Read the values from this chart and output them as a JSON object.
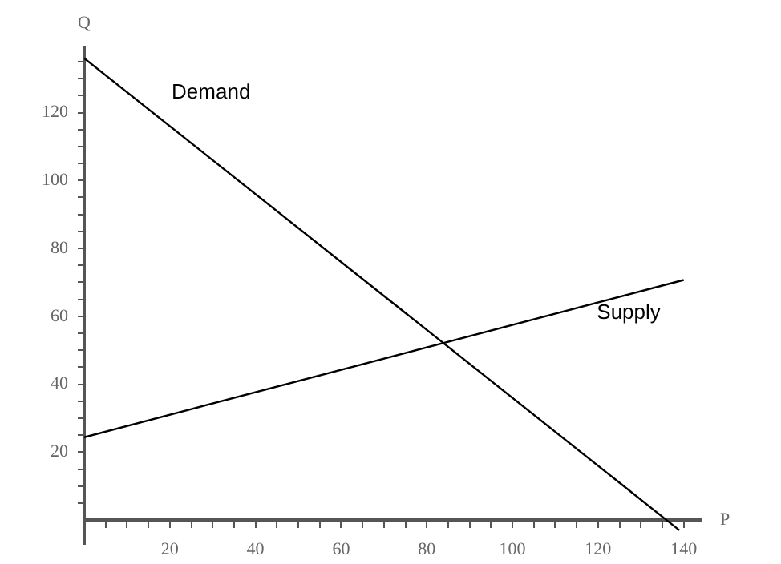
{
  "chart_data": {
    "type": "line",
    "xlabel": "P",
    "ylabel": "Q",
    "series": [
      {
        "name": "Demand",
        "color": "#000000",
        "x": [
          0,
          139
        ],
        "values": [
          136,
          -3
        ]
      },
      {
        "name": "Supply",
        "color": "#000000",
        "x": [
          0,
          140
        ],
        "values": [
          24.4,
          70.7
        ]
      }
    ],
    "xlim": [
      0,
      144
    ],
    "ylim": [
      -7,
      139
    ],
    "xticks": [
      {
        "value": 5,
        "label": null
      },
      {
        "value": 10,
        "label": null
      },
      {
        "value": 15,
        "label": null
      },
      20,
      {
        "value": 25,
        "label": null
      },
      {
        "value": 30,
        "label": null
      },
      {
        "value": 35,
        "label": null
      },
      40,
      {
        "value": 45,
        "label": null
      },
      {
        "value": 50,
        "label": null
      },
      {
        "value": 55,
        "label": null
      },
      60,
      {
        "value": 65,
        "label": null
      },
      {
        "value": 70,
        "label": null
      },
      {
        "value": 75,
        "label": null
      },
      80,
      {
        "value": 85,
        "label": null
      },
      {
        "value": 90,
        "label": null
      },
      {
        "value": 95,
        "label": null
      },
      100,
      {
        "value": 105,
        "label": null
      },
      {
        "value": 110,
        "label": null
      },
      {
        "value": 115,
        "label": null
      },
      120,
      {
        "value": 125,
        "label": null
      },
      {
        "value": 130,
        "label": null
      },
      {
        "value": 135,
        "label": null
      },
      140
    ],
    "yticks": [
      {
        "value": 5,
        "label": null
      },
      {
        "value": 10,
        "label": null
      },
      {
        "value": 15,
        "label": null
      },
      20,
      {
        "value": 25,
        "label": null
      },
      {
        "value": 30,
        "label": null
      },
      {
        "value": 35,
        "label": null
      },
      40,
      {
        "value": 45,
        "label": null
      },
      {
        "value": 50,
        "label": null
      },
      {
        "value": 55,
        "label": null
      },
      60,
      {
        "value": 65,
        "label": null
      },
      {
        "value": 70,
        "label": null
      },
      {
        "value": 75,
        "label": null
      },
      80,
      {
        "value": 85,
        "label": null
      },
      {
        "value": 90,
        "label": null
      },
      {
        "value": 95,
        "label": null
      },
      100,
      {
        "value": 105,
        "label": null
      },
      {
        "value": 110,
        "label": null
      },
      {
        "value": 115,
        "label": null
      },
      120,
      {
        "value": 125,
        "label": null
      },
      {
        "value": 130,
        "label": null
      },
      {
        "value": 135,
        "label": null
      }
    ],
    "grid": false,
    "legend": false,
    "marker": "none",
    "line_style": "solid"
  }
}
